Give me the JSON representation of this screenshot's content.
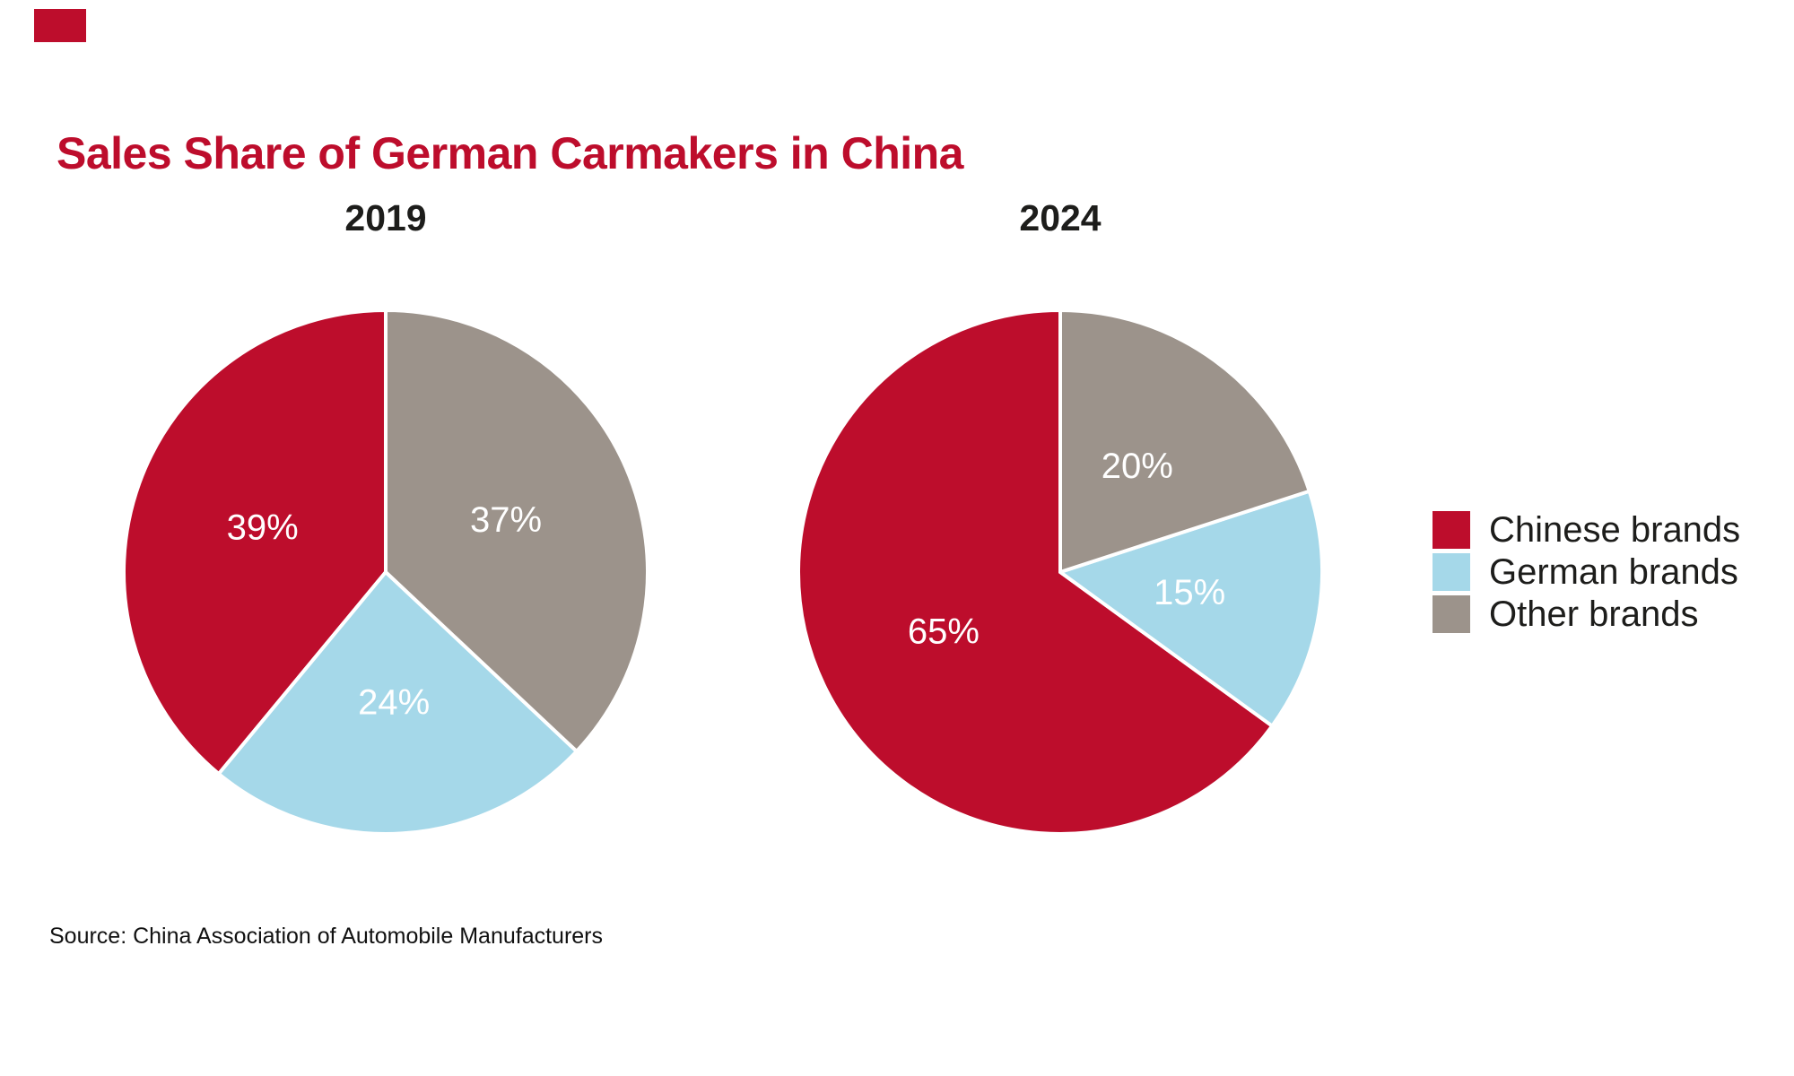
{
  "logo": {
    "color": "#bd0d2c"
  },
  "title": {
    "text": "Sales Share of German Carmakers in China",
    "color": "#bd0d2c"
  },
  "legend": {
    "position": "right",
    "items": [
      {
        "label": "Chinese brands",
        "color": "#bd0d2c"
      },
      {
        "label": "German brands",
        "color": "#a5d8e9"
      },
      {
        "label": "Other brands",
        "color": "#9c938b"
      }
    ]
  },
  "source": {
    "text": "Source: China Association of Automobile Manufacturers"
  },
  "chart_data": [
    {
      "type": "pie",
      "title": "2019",
      "categories": [
        "Chinese brands",
        "German brands",
        "Other brands"
      ],
      "values": [
        39,
        24,
        37
      ],
      "labels": [
        "39%",
        "24%",
        "37%"
      ],
      "colors": [
        "#bd0d2c",
        "#a5d8e9",
        "#9c938b"
      ],
      "unit": "percent",
      "start_angle_deg": 90,
      "direction": "counterclockwise",
      "label_color": "#ffffff",
      "label_radius_fraction": 0.5,
      "separator_color": "#ffffff"
    },
    {
      "type": "pie",
      "title": "2024",
      "categories": [
        "Chinese brands",
        "German brands",
        "Other brands"
      ],
      "values": [
        65,
        15,
        20
      ],
      "labels": [
        "65%",
        "15%",
        "20%"
      ],
      "colors": [
        "#bd0d2c",
        "#a5d8e9",
        "#9c938b"
      ],
      "unit": "percent",
      "start_angle_deg": 90,
      "direction": "counterclockwise",
      "label_color": "#ffffff",
      "label_radius_fraction": 0.5,
      "separator_color": "#ffffff"
    }
  ]
}
